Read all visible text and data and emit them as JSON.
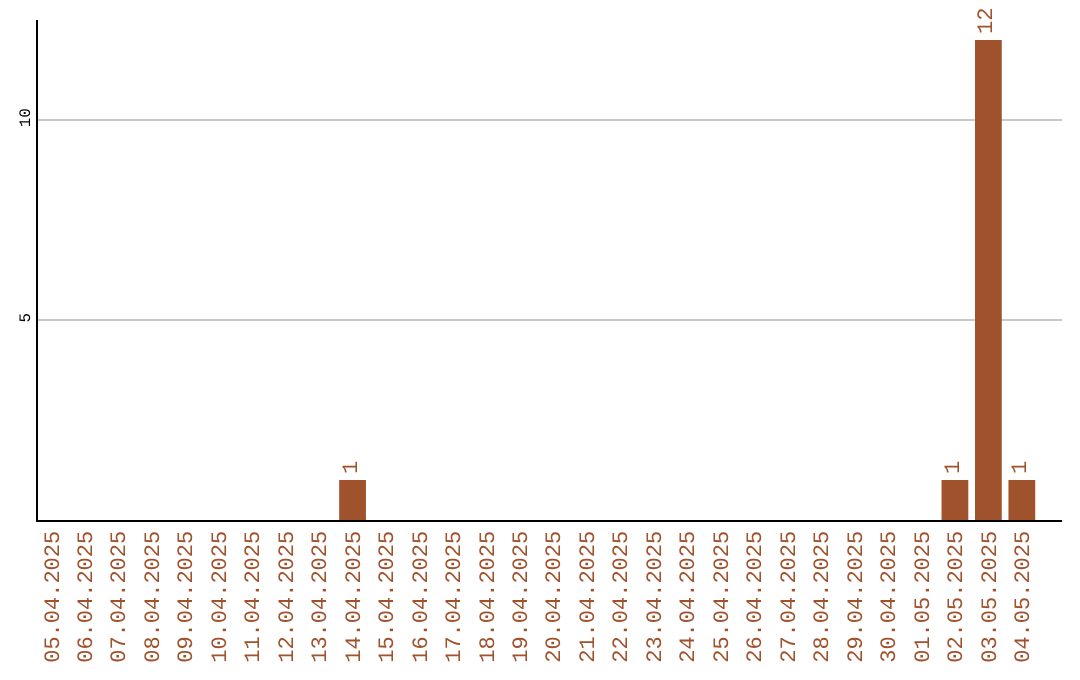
{
  "chart_data": {
    "type": "bar",
    "categories": [
      "05.04.2025",
      "06.04.2025",
      "07.04.2025",
      "08.04.2025",
      "09.04.2025",
      "10.04.2025",
      "11.04.2025",
      "12.04.2025",
      "13.04.2025",
      "14.04.2025",
      "15.04.2025",
      "16.04.2025",
      "17.04.2025",
      "18.04.2025",
      "19.04.2025",
      "20.04.2025",
      "21.04.2025",
      "22.04.2025",
      "23.04.2025",
      "24.04.2025",
      "25.04.2025",
      "26.04.2025",
      "27.04.2025",
      "28.04.2025",
      "29.04.2025",
      "30.04.2025",
      "01.05.2025",
      "02.05.2025",
      "03.05.2025",
      "04.05.2025"
    ],
    "values": [
      0,
      0,
      0,
      0,
      0,
      0,
      0,
      0,
      0,
      1,
      0,
      0,
      0,
      0,
      0,
      0,
      0,
      0,
      0,
      0,
      0,
      0,
      0,
      0,
      0,
      0,
      0,
      1,
      12,
      1
    ],
    "value_labels": [
      null,
      null,
      null,
      null,
      null,
      null,
      null,
      null,
      null,
      "1",
      null,
      null,
      null,
      null,
      null,
      null,
      null,
      null,
      null,
      null,
      null,
      null,
      null,
      null,
      null,
      null,
      null,
      "1",
      "12",
      "1"
    ],
    "color": "#a0522d",
    "ylim": [
      0,
      12.5
    ],
    "yticks": [
      5,
      10
    ],
    "grid": "y",
    "legend": false
  }
}
